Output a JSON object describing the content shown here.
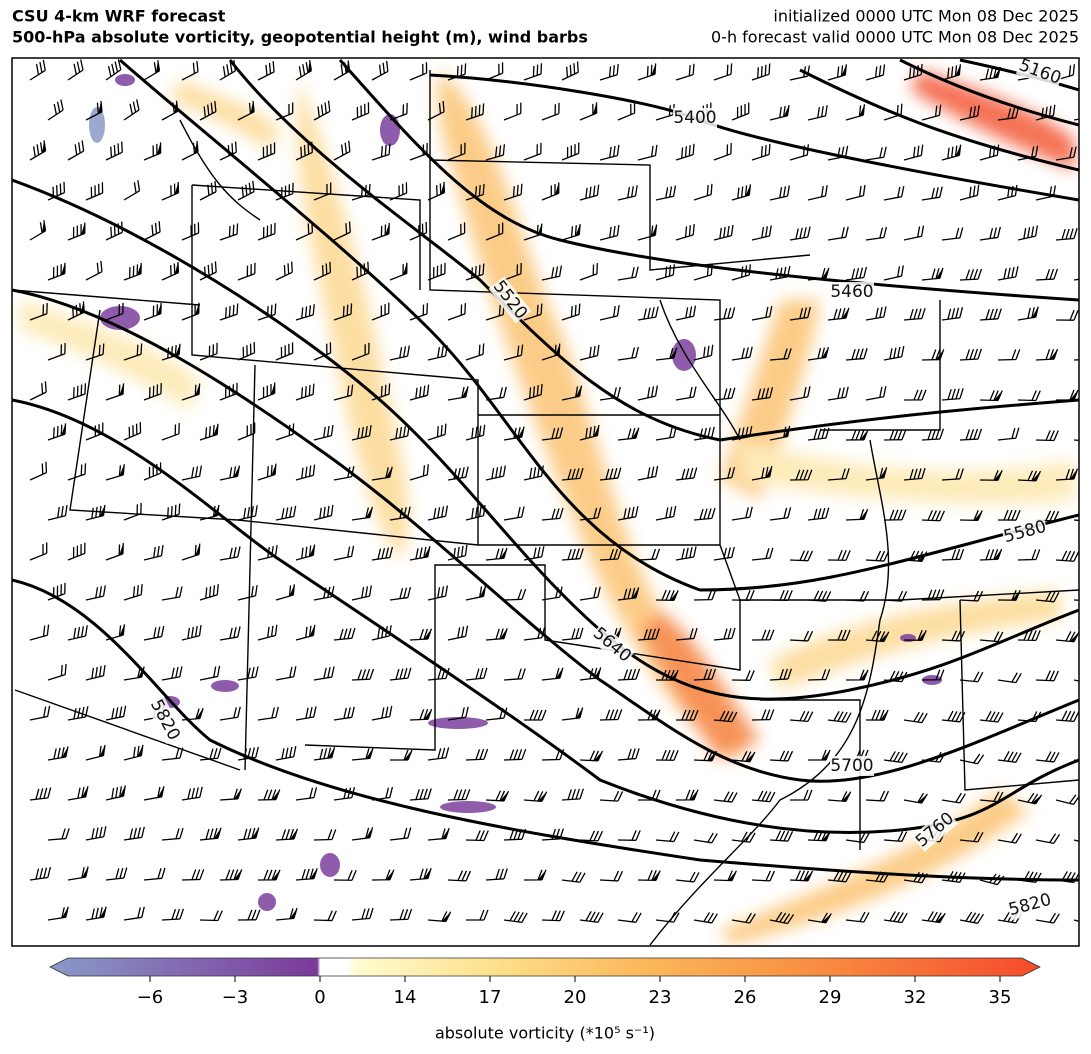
{
  "header": {
    "title_left": [
      "CSU 4-km WRF forecast",
      "500-hPa absolute vorticity, geopotential height (m), wind barbs"
    ],
    "title_right": [
      "initialized 0000 UTC Mon 08 Dec 2025",
      "0-h forecast valid 0000 UTC Mon 08 Dec 2025"
    ]
  },
  "map": {
    "contour_labels": [
      "5160",
      "5400",
      "5460",
      "5520",
      "5580",
      "5640",
      "5700",
      "5760",
      "5820",
      "5820"
    ]
  },
  "colorbar": {
    "ticks": [
      {
        "value": -6,
        "label": "−6"
      },
      {
        "value": -3,
        "label": "−3"
      },
      0,
      14,
      17,
      20,
      23,
      26,
      29,
      32,
      35
    ],
    "label": "absolute vorticity (*10⁵ s⁻¹)"
  }
}
